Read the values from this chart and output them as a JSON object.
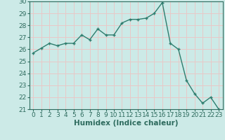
{
  "x": [
    0,
    1,
    2,
    3,
    4,
    5,
    6,
    7,
    8,
    9,
    10,
    11,
    12,
    13,
    14,
    15,
    16,
    17,
    18,
    19,
    20,
    21,
    22,
    23
  ],
  "y": [
    25.7,
    26.1,
    26.5,
    26.3,
    26.5,
    26.5,
    27.2,
    26.8,
    27.7,
    27.2,
    27.2,
    28.2,
    28.5,
    28.5,
    28.6,
    29.0,
    29.9,
    26.5,
    26.0,
    23.4,
    22.3,
    21.5,
    22.0,
    21.0
  ],
  "line_color": "#2e7d6e",
  "marker": "+",
  "markersize": 3.5,
  "linewidth": 1.0,
  "background_color": "#cceae7",
  "grid_color": "#e8c8c8",
  "xlabel": "Humidex (Indice chaleur)",
  "xlim": [
    -0.5,
    23.5
  ],
  "ylim": [
    21,
    30
  ],
  "yticks": [
    21,
    22,
    23,
    24,
    25,
    26,
    27,
    28,
    29,
    30
  ],
  "xticks": [
    0,
    1,
    2,
    3,
    4,
    5,
    6,
    7,
    8,
    9,
    10,
    11,
    12,
    13,
    14,
    15,
    16,
    17,
    18,
    19,
    20,
    21,
    22,
    23
  ],
  "tick_fontsize": 6.5,
  "label_fontsize": 7.5,
  "axes_color": "#2e6b5e",
  "spine_color": "#2e6b5e"
}
